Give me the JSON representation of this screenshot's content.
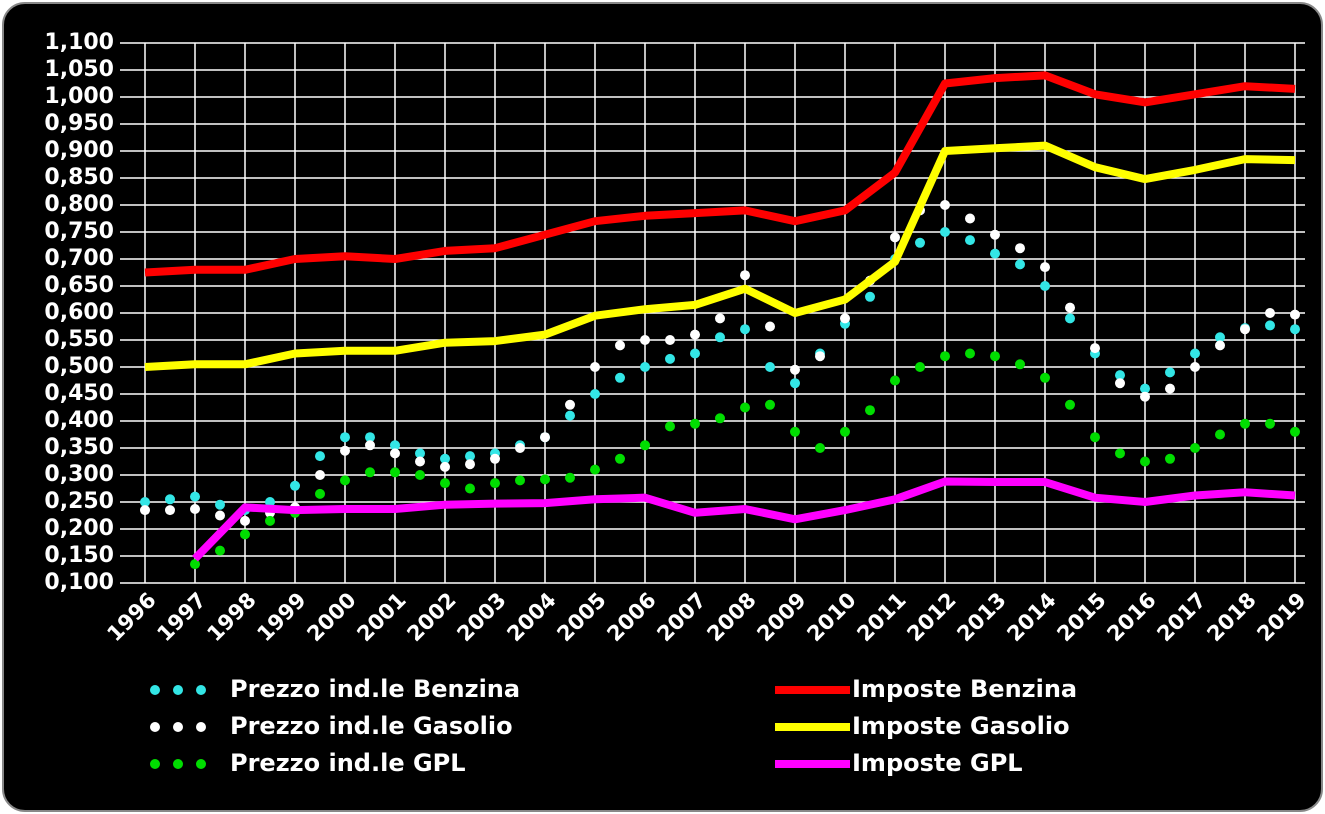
{
  "chart_data": {
    "type": "line",
    "xlim": [
      1995.5,
      2019.2
    ],
    "xticks": [
      1996,
      1997,
      1998,
      1999,
      2000,
      2001,
      2002,
      2003,
      2004,
      2005,
      2006,
      2007,
      2008,
      2009,
      2010,
      2011,
      2012,
      2013,
      2014,
      2015,
      2016,
      2017,
      2018,
      2019
    ],
    "ylim": [
      0.1,
      1.1
    ],
    "yticks": [
      {
        "value": 0.1,
        "label": "0,100"
      },
      {
        "value": 0.15,
        "label": "0,150"
      },
      {
        "value": 0.2,
        "label": "0,200"
      },
      {
        "value": 0.25,
        "label": "0,250"
      },
      {
        "value": 0.3,
        "label": "0,300"
      },
      {
        "value": 0.35,
        "label": "0,350"
      },
      {
        "value": 0.4,
        "label": "0,400"
      },
      {
        "value": 0.45,
        "label": "0,450"
      },
      {
        "value": 0.5,
        "label": "0,500"
      },
      {
        "value": 0.55,
        "label": "0,550"
      },
      {
        "value": 0.6,
        "label": "0,600"
      },
      {
        "value": 0.65,
        "label": "0,650"
      },
      {
        "value": 0.7,
        "label": "0,700"
      },
      {
        "value": 0.75,
        "label": "0,750"
      },
      {
        "value": 0.8,
        "label": "0,800"
      },
      {
        "value": 0.85,
        "label": "0,850"
      },
      {
        "value": 0.9,
        "label": "0,900"
      },
      {
        "value": 0.95,
        "label": "0,950"
      },
      {
        "value": 1.0,
        "label": "1,000"
      },
      {
        "value": 1.05,
        "label": "1,050"
      },
      {
        "value": 1.1,
        "label": "1,100"
      }
    ],
    "grid": true,
    "series": [
      {
        "name": "Prezzo ind.le Benzina",
        "style": "dots",
        "color": "#33e6e6",
        "x": [
          1996,
          1996.5,
          1997,
          1997.5,
          1998,
          1998.5,
          1999,
          1999.5,
          2000,
          2000.5,
          2001,
          2001.5,
          2002,
          2002.5,
          2003,
          2003.5,
          2004,
          2004.5,
          2005,
          2005.5,
          2006,
          2006.5,
          2007,
          2007.5,
          2008,
          2008.5,
          2009,
          2009.5,
          2010,
          2010.5,
          2011,
          2011.5,
          2012,
          2012.5,
          2013,
          2013.5,
          2014,
          2014.5,
          2015,
          2015.5,
          2016,
          2016.5,
          2017,
          2017.5,
          2018,
          2018.5,
          2019
        ],
        "values": [
          0.25,
          0.255,
          0.26,
          0.245,
          0.235,
          0.25,
          0.28,
          0.335,
          0.37,
          0.37,
          0.355,
          0.34,
          0.33,
          0.335,
          0.34,
          0.355,
          0.37,
          0.41,
          0.45,
          0.48,
          0.5,
          0.515,
          0.525,
          0.555,
          0.57,
          0.5,
          0.47,
          0.525,
          0.58,
          0.63,
          0.7,
          0.73,
          0.75,
          0.735,
          0.71,
          0.69,
          0.65,
          0.59,
          0.525,
          0.485,
          0.46,
          0.49,
          0.525,
          0.555,
          0.572,
          0.577,
          0.57
        ]
      },
      {
        "name": "Prezzo ind.le Gasolio",
        "style": "dots",
        "color": "#ffffff",
        "x": [
          1996,
          1996.5,
          1997,
          1997.5,
          1998,
          1998.5,
          1999,
          1999.5,
          2000,
          2000.5,
          2001,
          2001.5,
          2002,
          2002.5,
          2003,
          2003.5,
          2004,
          2004.5,
          2005,
          2005.5,
          2006,
          2006.5,
          2007,
          2007.5,
          2008,
          2008.5,
          2009,
          2009.5,
          2010,
          2010.5,
          2011,
          2011.5,
          2012,
          2012.5,
          2013,
          2013.5,
          2014,
          2014.5,
          2015,
          2015.5,
          2016,
          2016.5,
          2017,
          2017.5,
          2018,
          2018.5,
          2019
        ],
        "values": [
          0.235,
          0.235,
          0.237,
          0.225,
          0.215,
          0.23,
          0.24,
          0.3,
          0.345,
          0.355,
          0.34,
          0.325,
          0.315,
          0.32,
          0.33,
          0.35,
          0.37,
          0.43,
          0.5,
          0.54,
          0.55,
          0.55,
          0.56,
          0.59,
          0.67,
          0.575,
          0.495,
          0.52,
          0.59,
          0.66,
          0.74,
          0.79,
          0.8,
          0.775,
          0.745,
          0.72,
          0.685,
          0.61,
          0.535,
          0.47,
          0.445,
          0.46,
          0.5,
          0.54,
          0.57,
          0.6,
          0.597
        ]
      },
      {
        "name": "Prezzo ind.le GPL",
        "style": "dots",
        "color": "#00dd00",
        "x": [
          1997,
          1997.5,
          1998,
          1998.5,
          1999,
          1999.5,
          2000,
          2000.5,
          2001,
          2001.5,
          2002,
          2002.5,
          2003,
          2003.5,
          2004,
          2004.5,
          2005,
          2005.5,
          2006,
          2006.5,
          2007,
          2007.5,
          2008,
          2008.5,
          2009,
          2009.5,
          2010,
          2010.5,
          2011,
          2011.5,
          2012,
          2012.5,
          2013,
          2013.5,
          2014,
          2014.5,
          2015,
          2015.5,
          2016,
          2016.5,
          2017,
          2017.5,
          2018,
          2018.5,
          2019
        ],
        "values": [
          0.135,
          0.16,
          0.19,
          0.215,
          0.23,
          0.265,
          0.29,
          0.305,
          0.305,
          0.3,
          0.285,
          0.275,
          0.285,
          0.29,
          0.292,
          0.295,
          0.31,
          0.33,
          0.355,
          0.39,
          0.395,
          0.405,
          0.425,
          0.43,
          0.38,
          0.35,
          0.38,
          0.42,
          0.475,
          0.5,
          0.52,
          0.525,
          0.52,
          0.505,
          0.48,
          0.43,
          0.37,
          0.34,
          0.325,
          0.33,
          0.35,
          0.375,
          0.395,
          0.395,
          0.38
        ]
      },
      {
        "name": "Imposte Benzina",
        "style": "line",
        "color": "#ff0000",
        "x": [
          1996,
          1997,
          1998,
          1999,
          2000,
          2001,
          2002,
          2003,
          2004,
          2005,
          2006,
          2007,
          2008,
          2009,
          2010,
          2011,
          2012,
          2013,
          2014,
          2015,
          2016,
          2017,
          2018,
          2019
        ],
        "values": [
          0.675,
          0.68,
          0.68,
          0.7,
          0.705,
          0.7,
          0.715,
          0.72,
          0.745,
          0.77,
          0.78,
          0.785,
          0.79,
          0.77,
          0.79,
          0.86,
          1.025,
          1.035,
          1.04,
          1.005,
          0.99,
          1.005,
          1.02,
          1.015
        ]
      },
      {
        "name": "Imposte Gasolio",
        "style": "line",
        "color": "#ffff00",
        "x": [
          1996,
          1997,
          1998,
          1999,
          2000,
          2001,
          2002,
          2003,
          2004,
          2005,
          2006,
          2007,
          2008,
          2009,
          2010,
          2011,
          2012,
          2013,
          2014,
          2015,
          2016,
          2017,
          2018,
          2019
        ],
        "values": [
          0.5,
          0.505,
          0.505,
          0.525,
          0.53,
          0.53,
          0.545,
          0.548,
          0.56,
          0.595,
          0.607,
          0.615,
          0.645,
          0.6,
          0.625,
          0.695,
          0.9,
          0.905,
          0.91,
          0.87,
          0.848,
          0.865,
          0.885,
          0.883
        ]
      },
      {
        "name": "Imposte GPL",
        "style": "line",
        "color": "#ff00ff",
        "x": [
          1997,
          1998,
          1999,
          2000,
          2001,
          2002,
          2003,
          2004,
          2005,
          2006,
          2007,
          2008,
          2009,
          2010,
          2011,
          2012,
          2013,
          2014,
          2015,
          2016,
          2017,
          2018,
          2019
        ],
        "values": [
          0.145,
          0.24,
          0.235,
          0.237,
          0.237,
          0.245,
          0.247,
          0.248,
          0.255,
          0.258,
          0.23,
          0.237,
          0.218,
          0.235,
          0.255,
          0.288,
          0.287,
          0.287,
          0.258,
          0.25,
          0.262,
          0.268,
          0.262
        ]
      }
    ]
  }
}
